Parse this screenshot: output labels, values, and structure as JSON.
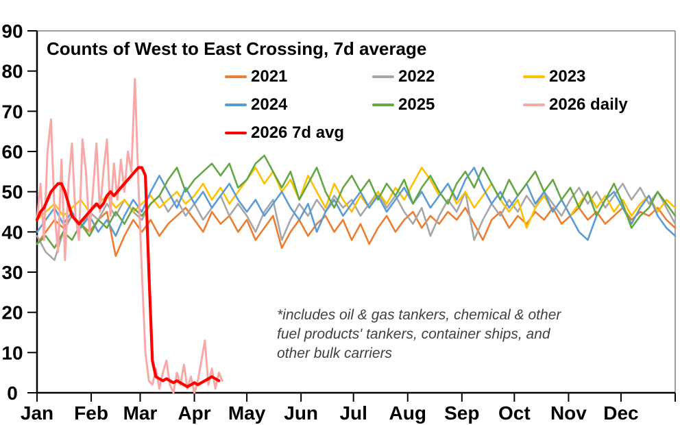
{
  "title": "Counts of West to East Crossing, 7d average",
  "footnote": {
    "line1": "*includes oil & gas tankers, chemical & other",
    "line2": "fuel products' tankers, container ships, and",
    "line3": "other bulk carriers"
  },
  "colors": {
    "axis": "#000000",
    "plot_border": "#7f7f7f",
    "axis_label_text": "#000000",
    "footnote_text": "#3f3f3f"
  },
  "chart_data": {
    "type": "line",
    "title": "Counts of West to East Crossing, 7d average",
    "xlabel": "",
    "ylabel": "",
    "grid": false,
    "legend_position": "top-inside",
    "y_axis": {
      "ticks": [
        0,
        10,
        20,
        30,
        40,
        50,
        60,
        70,
        80,
        90
      ],
      "range": [
        0,
        90
      ]
    },
    "x_axis": {
      "unit": "day-of-year",
      "range_days": [
        0,
        365
      ],
      "month_labels": [
        "Jan",
        "Feb",
        "Mar",
        "Apr",
        "May",
        "Jun",
        "Jul",
        "Aug",
        "Sep",
        "Oct",
        "Nov",
        "Dec"
      ],
      "tick_days": [
        0,
        31,
        59,
        90,
        120,
        151,
        181,
        212,
        243,
        273,
        304,
        334
      ],
      "end_tick_day": 365
    },
    "legend": {
      "items": [
        {
          "label": "2021",
          "color": "#ED7D31"
        },
        {
          "label": "2022",
          "color": "#A6A6A6"
        },
        {
          "label": "2023",
          "color": "#FFC000"
        },
        {
          "label": "2024",
          "color": "#5B9BD5"
        },
        {
          "label": "2025",
          "color": "#62A744"
        },
        {
          "label": "2026 daily",
          "color": "#F8A8A6"
        },
        {
          "label": "2026 7d avg",
          "color": "#FF0000"
        }
      ]
    },
    "series": [
      {
        "name": "2021",
        "color": "#ED7D31",
        "width": 2.6,
        "x_start": 0,
        "x_step": 5,
        "values": [
          37,
          40,
          43,
          41,
          44,
          42,
          40,
          43,
          45,
          34,
          39,
          43,
          40,
          43,
          39,
          42,
          44,
          46,
          43,
          40,
          45,
          42,
          44,
          40,
          43,
          38,
          41,
          44,
          36,
          40,
          43,
          39,
          42,
          44,
          40,
          43,
          38,
          42,
          37,
          41,
          44,
          40,
          43,
          45,
          41,
          44,
          42,
          45,
          43,
          46,
          42,
          38,
          43,
          45,
          41,
          44,
          42,
          45,
          43,
          46,
          42,
          44,
          46,
          43,
          45,
          42,
          44,
          46,
          43,
          45,
          44,
          46,
          43,
          41
        ]
      },
      {
        "name": "2022",
        "color": "#A6A6A6",
        "width": 2.6,
        "x_start": 0,
        "x_step": 5,
        "values": [
          39,
          35,
          33,
          40,
          44,
          41,
          45,
          43,
          47,
          44,
          48,
          45,
          43,
          47,
          49,
          45,
          48,
          44,
          47,
          43,
          46,
          49,
          44,
          47,
          44,
          40,
          45,
          48,
          38,
          43,
          47,
          44,
          48,
          45,
          49,
          46,
          48,
          44,
          47,
          50,
          46,
          49,
          45,
          42,
          46,
          39,
          44,
          48,
          45,
          50,
          38,
          43,
          47,
          44,
          48,
          45,
          49,
          46,
          50,
          47,
          44,
          48,
          51,
          47,
          50,
          46,
          49,
          52,
          48,
          51,
          47,
          50,
          46,
          42
        ]
      },
      {
        "name": "2023",
        "color": "#FFC000",
        "width": 2.6,
        "x_start": 0,
        "x_step": 5,
        "values": [
          43,
          45,
          47,
          44,
          46,
          48,
          45,
          47,
          49,
          46,
          48,
          45,
          47,
          49,
          46,
          48,
          50,
          47,
          49,
          52,
          48,
          51,
          47,
          50,
          53,
          56,
          52,
          55,
          50,
          53,
          48,
          54,
          50,
          46,
          52,
          48,
          45,
          49,
          46,
          50,
          47,
          51,
          48,
          52,
          56,
          53,
          49,
          52,
          47,
          50,
          46,
          49,
          52,
          48,
          45,
          48,
          41,
          46,
          49,
          45,
          48,
          44,
          47,
          50,
          46,
          49,
          45,
          48,
          44,
          47,
          49,
          45,
          48,
          46
        ]
      },
      {
        "name": "2024",
        "color": "#5B9BD5",
        "width": 2.6,
        "x_start": 0,
        "x_step": 5,
        "values": [
          40,
          43,
          46,
          42,
          45,
          41,
          44,
          40,
          43,
          39,
          44,
          48,
          45,
          50,
          54,
          50,
          46,
          51,
          47,
          50,
          46,
          49,
          52,
          48,
          45,
          48,
          44,
          47,
          50,
          46,
          43,
          47,
          40,
          45,
          48,
          44,
          47,
          50,
          46,
          49,
          45,
          48,
          51,
          47,
          50,
          46,
          49,
          52,
          48,
          53,
          56,
          51,
          47,
          50,
          46,
          49,
          52,
          47,
          50,
          45,
          48,
          44,
          40,
          38,
          44,
          48,
          50,
          46,
          42,
          46,
          49,
          44,
          41,
          39
        ]
      },
      {
        "name": "2025",
        "color": "#62A744",
        "width": 2.6,
        "x_start": 0,
        "x_step": 5,
        "values": [
          37,
          39,
          36,
          40,
          38,
          42,
          39,
          43,
          41,
          45,
          42,
          46,
          44,
          47,
          49,
          53,
          56,
          50,
          53,
          55,
          57,
          54,
          57,
          51,
          53,
          57,
          59,
          55,
          51,
          55,
          48,
          52,
          56,
          50,
          46,
          51,
          54,
          50,
          53,
          48,
          52,
          49,
          53,
          47,
          51,
          54,
          50,
          47,
          52,
          55,
          51,
          56,
          52,
          48,
          53,
          49,
          52,
          55,
          50,
          53,
          48,
          51,
          46,
          50,
          44,
          48,
          52,
          47,
          41,
          44,
          46,
          50,
          47,
          44
        ]
      },
      {
        "name": "2026 daily",
        "color": "#F8A8A6",
        "width": 3,
        "x_start": 0,
        "x_step": 2,
        "values": [
          43,
          52,
          38,
          60,
          68,
          45,
          35,
          58,
          33,
          52,
          62,
          44,
          38,
          63,
          55,
          40,
          50,
          62,
          45,
          55,
          63,
          44,
          57,
          48,
          58,
          50,
          60,
          55,
          78,
          52,
          30,
          10,
          3,
          2,
          6,
          1,
          5,
          8,
          2,
          0,
          5,
          2,
          7,
          1,
          4,
          0,
          3,
          8,
          13,
          2,
          6,
          1,
          5,
          3
        ]
      },
      {
        "name": "2026 7d avg",
        "color": "#FF0000",
        "width": 4.2,
        "x_start": 0,
        "x_step": 2,
        "values": [
          43,
          45,
          46,
          48,
          50,
          51,
          52,
          52,
          50,
          47,
          44,
          43,
          42,
          43,
          44,
          45,
          46,
          47,
          46,
          47,
          49,
          50,
          49,
          50,
          51,
          52,
          53,
          54,
          55,
          56,
          56,
          54,
          30,
          8,
          4,
          3.5,
          3,
          3.5,
          3,
          2.5,
          3,
          2.5,
          2,
          1.5,
          2,
          2.5,
          2,
          2.5,
          3,
          3.5,
          4,
          3.5,
          3
        ]
      }
    ]
  }
}
